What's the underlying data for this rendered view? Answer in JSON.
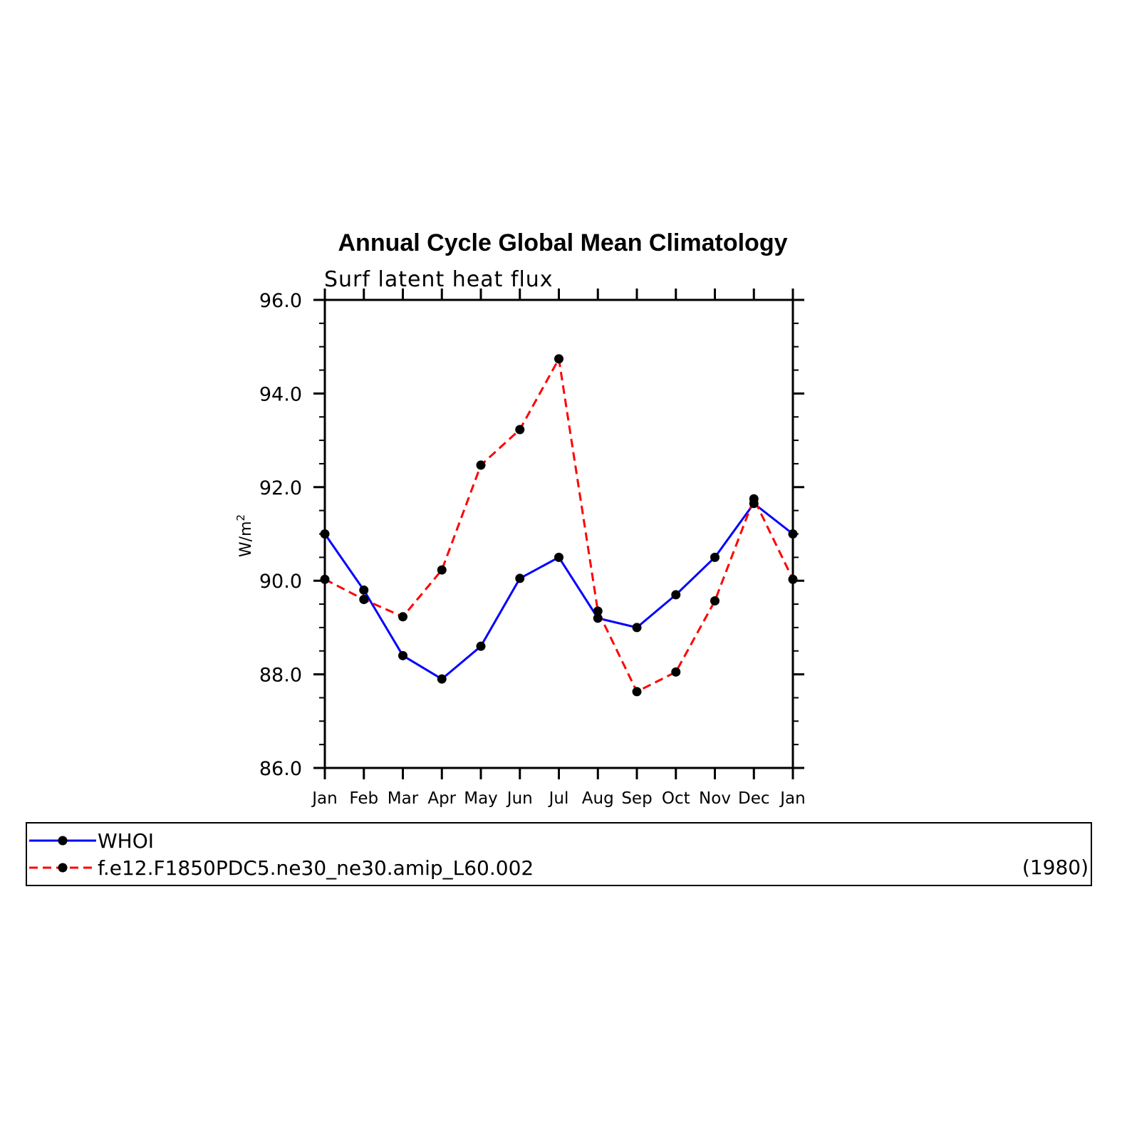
{
  "chart_data": {
    "type": "line",
    "title": "Annual Cycle Global Mean Climatology",
    "subtitle": "Surf latent heat flux",
    "xlabel": "",
    "ylabel": "W/m",
    "ylabel_superscript": "2",
    "categories": [
      "Jan",
      "Feb",
      "Mar",
      "Apr",
      "May",
      "Jun",
      "Jul",
      "Aug",
      "Sep",
      "Oct",
      "Nov",
      "Dec",
      "Jan"
    ],
    "ylim": [
      86.0,
      96.0
    ],
    "yticks": [
      "86.0",
      "88.0",
      "90.0",
      "92.0",
      "94.0",
      "96.0"
    ],
    "grid": false,
    "legend_position": "bottom",
    "legend_suffix": "(1980)",
    "series": [
      {
        "name": "WHOI",
        "color": "#0000ff",
        "dash": "solid",
        "values": [
          91.0,
          89.8,
          88.4,
          87.9,
          88.6,
          90.05,
          90.5,
          89.2,
          89.0,
          89.7,
          90.5,
          91.65,
          91.0
        ]
      },
      {
        "name": "f.e12.F1850PDC5.ne30_ne30.amip_L60.002",
        "color": "#ff0000",
        "dash": "dashed",
        "values": [
          90.03,
          89.6,
          89.23,
          90.23,
          92.47,
          93.23,
          94.74,
          89.35,
          87.63,
          88.05,
          89.57,
          91.75,
          90.03
        ]
      }
    ]
  }
}
